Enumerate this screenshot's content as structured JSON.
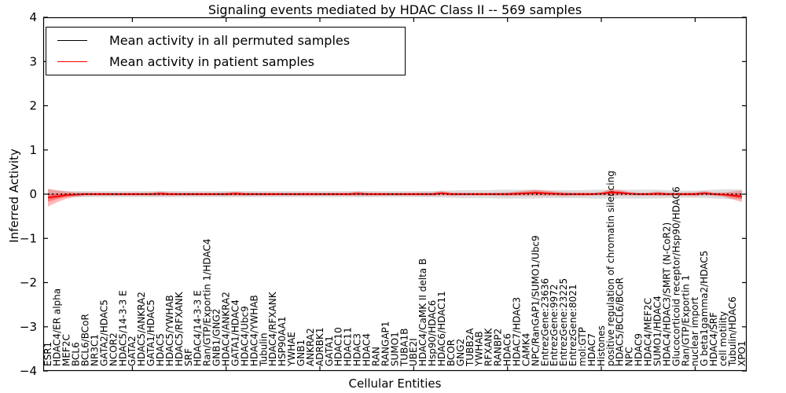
{
  "chart_data": {
    "type": "line",
    "title": "Signaling events mediated by HDAC Class II -- 569 samples",
    "xlabel": "Cellular Entities",
    "ylabel": "Inferred Activity",
    "ylim": [
      -4,
      4
    ],
    "y_ticks": [
      4,
      3,
      2,
      1,
      0,
      -1,
      -2,
      -3,
      -4
    ],
    "grid": false,
    "legend_position": "upper left",
    "categories": [
      "ESR1",
      "HDAC4/ER alpha",
      "MEF2C",
      "BCL6",
      "BCL6/BCoR",
      "NR3C1",
      "GATA2/HDAC5",
      "NCOR2",
      "HDAC5/14-3-3 E",
      "GATA2",
      "HDAC5/ANKRA2",
      "GATA1/HDAC5",
      "HDAC5",
      "HDAC5/YWHAB",
      "HDAC5/RFXANK",
      "SRF",
      "HDAC4/14-3-3 E",
      "Ran/GTP/Exportin 1/HDAC4",
      "GNB1/GNG2",
      "HDAC4/ANKRA2",
      "GATA1/HDAC4",
      "HDAC4/Ubc9",
      "HDAC4/YWHAB",
      "Tubulin",
      "HDAC4/RFXANK",
      "HSP90AA1",
      "YWHAE",
      "GNB1",
      "ANKRA2",
      "ADRBK1",
      "GATA1",
      "HDAC10",
      "HDAC11",
      "HDAC3",
      "HDAC4",
      "RAN",
      "RANGAP1",
      "SUMO1",
      "TUBA1B",
      "UBE2I",
      "HDAC4/CaMK II delta B",
      "Hsp90/HDAC6",
      "HDAC6/HDAC11",
      "BCOR",
      "GNG2",
      "TUBB2A",
      "YWHAB",
      "RFXANK",
      "RANBP2",
      "HDAC6",
      "HDAC7/HDAC3",
      "CAMK4",
      "NPC/RanGAP1/SUMO1/Ubc9",
      "EntrezGene:23636",
      "EntrezGene:9972",
      "EntrezGene:23225",
      "EntrezGene:8021",
      "mol:GTP",
      "HDAC7",
      "Histones",
      "positive regulation of chromatin silencing",
      "HDAC5/BCL6/BCoR",
      "NPC",
      "HDAC9",
      "HDAC4/MEF2C",
      "SUMO1/HDAC4",
      "HDAC4/HDAC3/SMRT (N-CoR2)",
      "Glucocorticoid receptor/Hsp90/HDAC6",
      "Ran/GTP/Exportin 1",
      "nuclear import",
      "G beta1gamma2/HDAC5",
      "HDAC4/SRF",
      "cell motility",
      "Tubulin/HDAC6",
      "XPO1"
    ],
    "series": [
      {
        "name": "Mean activity in all permuted samples",
        "color": "#000000",
        "plot_line_style": "dotted",
        "values_constant": 0,
        "band_color": "#bbbbbb",
        "band_halfwidth": [
          0.11,
          0.09,
          0.07,
          0.07,
          0.07,
          0.07,
          0.07,
          0.07,
          0.07,
          0.07,
          0.07,
          0.07,
          0.07,
          0.07,
          0.07,
          0.07,
          0.07,
          0.07,
          0.07,
          0.07,
          0.07,
          0.07,
          0.07,
          0.07,
          0.07,
          0.07,
          0.07,
          0.07,
          0.07,
          0.07,
          0.07,
          0.07,
          0.07,
          0.07,
          0.07,
          0.07,
          0.07,
          0.07,
          0.07,
          0.07,
          0.07,
          0.07,
          0.08,
          0.08,
          0.09,
          0.09,
          0.09,
          0.09,
          0.1,
          0.1,
          0.1,
          0.1,
          0.1,
          0.09,
          0.09,
          0.09,
          0.09,
          0.09,
          0.1,
          0.1,
          0.1,
          0.1,
          0.1,
          0.1,
          0.1,
          0.1,
          0.09,
          0.08,
          0.08,
          0.08,
          0.09,
          0.1,
          0.11,
          0.11,
          0.11
        ]
      },
      {
        "name": "Mean activity in patient samples",
        "color": "#ff0000",
        "plot_line_style": "solid",
        "values": [
          -0.08,
          -0.05,
          -0.02,
          -0.01,
          0,
          0,
          0,
          0,
          0,
          0,
          0,
          0,
          0.01,
          0,
          0,
          0,
          0,
          0,
          0,
          0,
          0.01,
          0,
          0,
          0,
          0,
          0,
          0,
          0,
          0,
          0,
          0,
          0,
          0,
          0.01,
          0,
          0,
          0,
          0,
          0,
          0,
          0,
          0,
          0.02,
          0,
          0,
          0,
          0,
          0,
          0,
          0,
          0.01,
          0.02,
          0.03,
          0.02,
          0.01,
          0,
          0,
          0,
          0,
          0.01,
          0.04,
          0.03,
          0.01,
          0,
          0,
          0.01,
          0,
          0,
          0,
          0,
          0.02,
          0,
          -0.01,
          -0.03,
          -0.05
        ],
        "band_color": "#ff0000",
        "band_halfwidth": [
          0.2,
          0.13,
          0.08,
          0.05,
          0.04,
          0.035,
          0.035,
          0.035,
          0.035,
          0.035,
          0.035,
          0.04,
          0.05,
          0.04,
          0.035,
          0.035,
          0.035,
          0.035,
          0.035,
          0.04,
          0.045,
          0.04,
          0.035,
          0.035,
          0.035,
          0.035,
          0.035,
          0.035,
          0.035,
          0.035,
          0.035,
          0.035,
          0.035,
          0.05,
          0.04,
          0.035,
          0.035,
          0.035,
          0.035,
          0.035,
          0.04,
          0.04,
          0.05,
          0.04,
          0.035,
          0.035,
          0.035,
          0.035,
          0.04,
          0.045,
          0.05,
          0.06,
          0.07,
          0.06,
          0.05,
          0.05,
          0.04,
          0.04,
          0.035,
          0.04,
          0.07,
          0.06,
          0.04,
          0.035,
          0.035,
          0.05,
          0.04,
          0.035,
          0.04,
          0.045,
          0.05,
          0.04,
          0.05,
          0.09,
          0.13
        ]
      }
    ]
  }
}
